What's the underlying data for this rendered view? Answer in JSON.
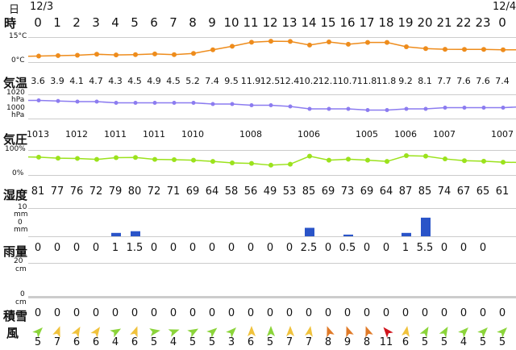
{
  "header": {
    "day_label": "日",
    "hour_label": "時",
    "date_start": "12/3",
    "date_end": "12/4"
  },
  "hours": [
    "0",
    "1",
    "2",
    "3",
    "4",
    "5",
    "6",
    "7",
    "8",
    "9",
    "10",
    "11",
    "12",
    "13",
    "14",
    "15",
    "16",
    "17",
    "18",
    "19",
    "20",
    "21",
    "22",
    "23",
    "0"
  ],
  "temperature": {
    "label": "気温",
    "axis_top": "15°C",
    "axis_bottom": "0°C",
    "values": [
      "3.6",
      "3.9",
      "4.1",
      "4.7",
      "4.3",
      "4.5",
      "4.9",
      "4.5",
      "5.2",
      "7.4",
      "9.5",
      "11.9",
      "12.5",
      "12.4",
      "10.2",
      "12.1",
      "10.7",
      "11.8",
      "11.8",
      "9.2",
      "8.1",
      "7.7",
      "7.6",
      "7.6",
      "7.4"
    ],
    "color": "#ee8c1c"
  },
  "pressure": {
    "label": "気圧",
    "axis_top_value": "1020",
    "axis_top_unit": "hPa",
    "axis_bottom_value": "1000",
    "axis_bottom_unit": "hPa",
    "values": [
      "1013",
      "1012",
      "1011",
      "1011",
      "1010",
      "1008",
      "1006",
      "1005",
      "1006",
      "1007",
      "1007"
    ],
    "series": [
      1013,
      1012.5,
      1012,
      1012,
      1011,
      1011,
      1011,
      1011,
      1011,
      1010,
      1010,
      1009,
      1009,
      1008,
      1006,
      1006,
      1006,
      1005,
      1005,
      1006,
      1006,
      1007,
      1007,
      1007,
      1007
    ],
    "color": "#8c7cf0"
  },
  "humidity": {
    "label": "湿度",
    "axis_top": "100%",
    "axis_bottom": "0%",
    "values": [
      "81",
      "77",
      "76",
      "72",
      "79",
      "80",
      "72",
      "71",
      "69",
      "64",
      "58",
      "56",
      "49",
      "53",
      "85",
      "69",
      "73",
      "69",
      "64",
      "87",
      "85",
      "74",
      "67",
      "65",
      "61"
    ],
    "color": "#9be21c"
  },
  "rain": {
    "label": "雨量",
    "axis_top_value": "10",
    "axis_top_unit": "mm",
    "axis_bottom_value": "0",
    "axis_bottom_unit": "mm",
    "values": [
      "0",
      "0",
      "0",
      "0",
      "1",
      "1.5",
      "0",
      "0",
      "0",
      "0",
      "0",
      "0",
      "0",
      "0",
      "2.5",
      "0",
      "0.5",
      "0",
      "0",
      "1",
      "5.5",
      "0",
      "0",
      "0"
    ],
    "color": "#2a54c8"
  },
  "snow": {
    "label": "積雪",
    "axis_top_value": "20",
    "axis_top_unit": "cm",
    "axis_bottom_value": "0",
    "axis_bottom_unit": "cm",
    "values": [
      "0",
      "0",
      "0",
      "0",
      "0",
      "0",
      "0",
      "0",
      "0",
      "0",
      "0",
      "0",
      "0",
      "0",
      "0",
      "0",
      "0",
      "0",
      "0",
      "0",
      "0",
      "0",
      "0",
      "0",
      "0"
    ]
  },
  "wind": {
    "label": "風",
    "values": [
      "5",
      "7",
      "6",
      "6",
      "4",
      "6",
      "5",
      "4",
      "5",
      "5",
      "3",
      "6",
      "5",
      "7",
      "7",
      "8",
      "9",
      "8",
      "11",
      "6",
      "5",
      "5",
      "4",
      "5",
      "5"
    ],
    "arrow_colors": [
      "#8bd43a",
      "#f0c23c",
      "#f0c23c",
      "#f0c23c",
      "#8bd43a",
      "#f0c23c",
      "#8bd43a",
      "#8bd43a",
      "#8bd43a",
      "#8bd43a",
      "#8bd43a",
      "#f0c23c",
      "#8bd43a",
      "#f0c23c",
      "#f0c23c",
      "#e07a28",
      "#e07a28",
      "#e07a28",
      "#d0141c",
      "#f0c23c",
      "#8bd43a",
      "#8bd43a",
      "#8bd43a",
      "#8bd43a",
      "#8bd43a"
    ],
    "arrow_angles": [
      45,
      20,
      30,
      35,
      60,
      20,
      80,
      70,
      60,
      50,
      45,
      0,
      0,
      0,
      10,
      -20,
      -20,
      -20,
      -40,
      10,
      30,
      30,
      45,
      45,
      45
    ]
  }
}
